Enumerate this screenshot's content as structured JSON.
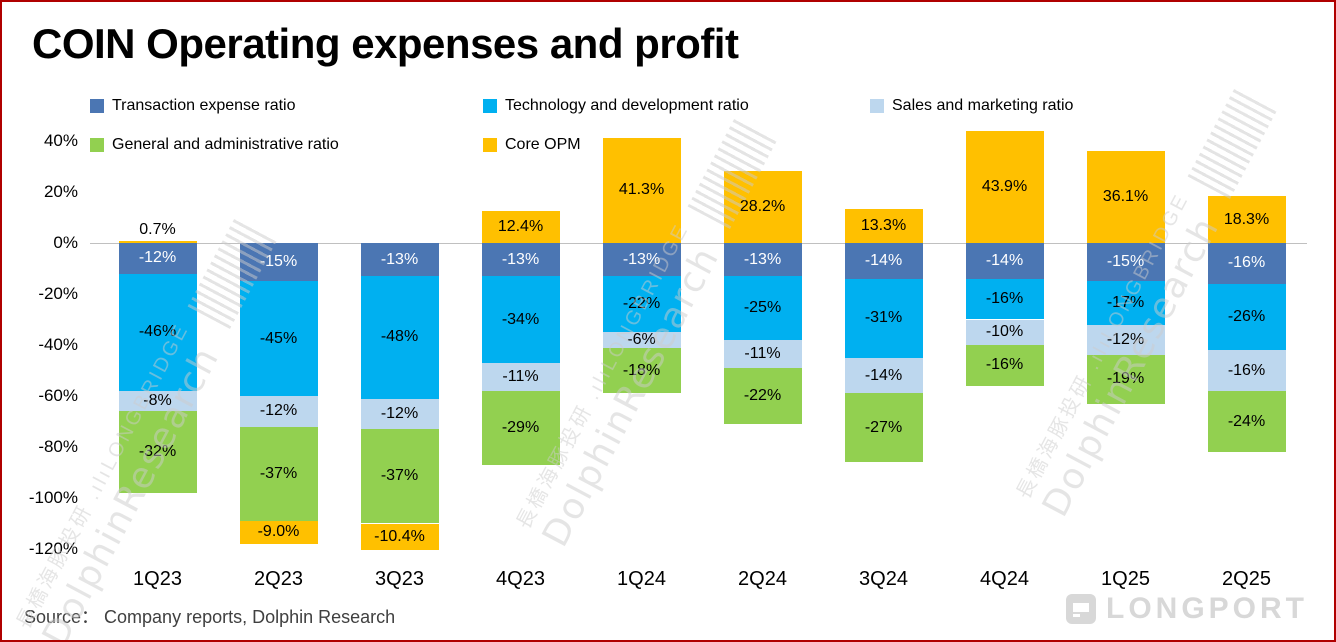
{
  "page": {
    "title": "COIN Operating expenses and profit",
    "source": "Source：  Company reports, Dolphin Research"
  },
  "watermark": {
    "line1": "長橋海豚投研 .ılıLONGBRIDGE",
    "line2": "DolphinResearch",
    "logo_text": "LONGPORT"
  },
  "chart_data": {
    "type": "bar",
    "stacked": true,
    "title": "COIN Operating expenses and profit",
    "xlabel": "",
    "ylabel": "",
    "legend_position": "top",
    "grid": false,
    "zero_line": true,
    "ylim": [
      -125,
      48
    ],
    "y_ticks": [
      "40%",
      "20%",
      "0%",
      "-20%",
      "-40%",
      "-60%",
      "-80%",
      "-100%",
      "-120%"
    ],
    "categories": [
      "1Q23",
      "2Q23",
      "3Q23",
      "4Q23",
      "1Q24",
      "2Q24",
      "3Q24",
      "4Q24",
      "1Q25",
      "2Q25"
    ],
    "series": [
      {
        "name": "Transaction expense ratio",
        "color": "#4b76b3",
        "values": [
          -12,
          -15,
          -13,
          -13,
          -13,
          -13,
          -14,
          -14,
          -15,
          -16
        ],
        "labels": [
          "-12%",
          "-15%",
          "-13%",
          "-13%",
          "-13%",
          "-13%",
          "-14%",
          "-14%",
          "-15%",
          "-16%"
        ]
      },
      {
        "name": "Technology and development ratio",
        "color": "#00b0f0",
        "values": [
          -46,
          -45,
          -48,
          -34,
          -22,
          -25,
          -31,
          -16,
          -17,
          -26
        ],
        "labels": [
          "-46%",
          "-45%",
          "-48%",
          "-34%",
          "-22%",
          "-25%",
          "-31%",
          "-16%",
          "-17%",
          "-26%"
        ]
      },
      {
        "name": "Sales and marketing ratio",
        "color": "#bdd7ee",
        "values": [
          -8,
          -12,
          -12,
          -11,
          -6,
          -11,
          -14,
          -10,
          -12,
          -16
        ],
        "labels": [
          "-8%",
          "-12%",
          "-12%",
          "-11%",
          "-6%",
          "-11%",
          "-14%",
          "-10%",
          "-12%",
          "-16%"
        ]
      },
      {
        "name": "General and administrative ratio",
        "color": "#92d050",
        "values": [
          -32,
          -37,
          -37,
          -29,
          -18,
          -22,
          -27,
          -16,
          -19,
          -24
        ],
        "labels": [
          "-32%",
          "-37%",
          "-37%",
          "-29%",
          "-18%",
          "-22%",
          "-27%",
          "-16%",
          "-19%",
          "-24%"
        ]
      },
      {
        "name": "Core OPM",
        "color": "#ffc000",
        "values": [
          0.7,
          -9.0,
          -10.4,
          12.4,
          41.3,
          28.2,
          13.3,
          43.9,
          36.1,
          18.3
        ],
        "labels": [
          "0.7%",
          "-9.0%",
          "-10.4%",
          "12.4%",
          "41.3%",
          "28.2%",
          "13.3%",
          "43.9%",
          "36.1%",
          "18.3%"
        ]
      }
    ]
  }
}
